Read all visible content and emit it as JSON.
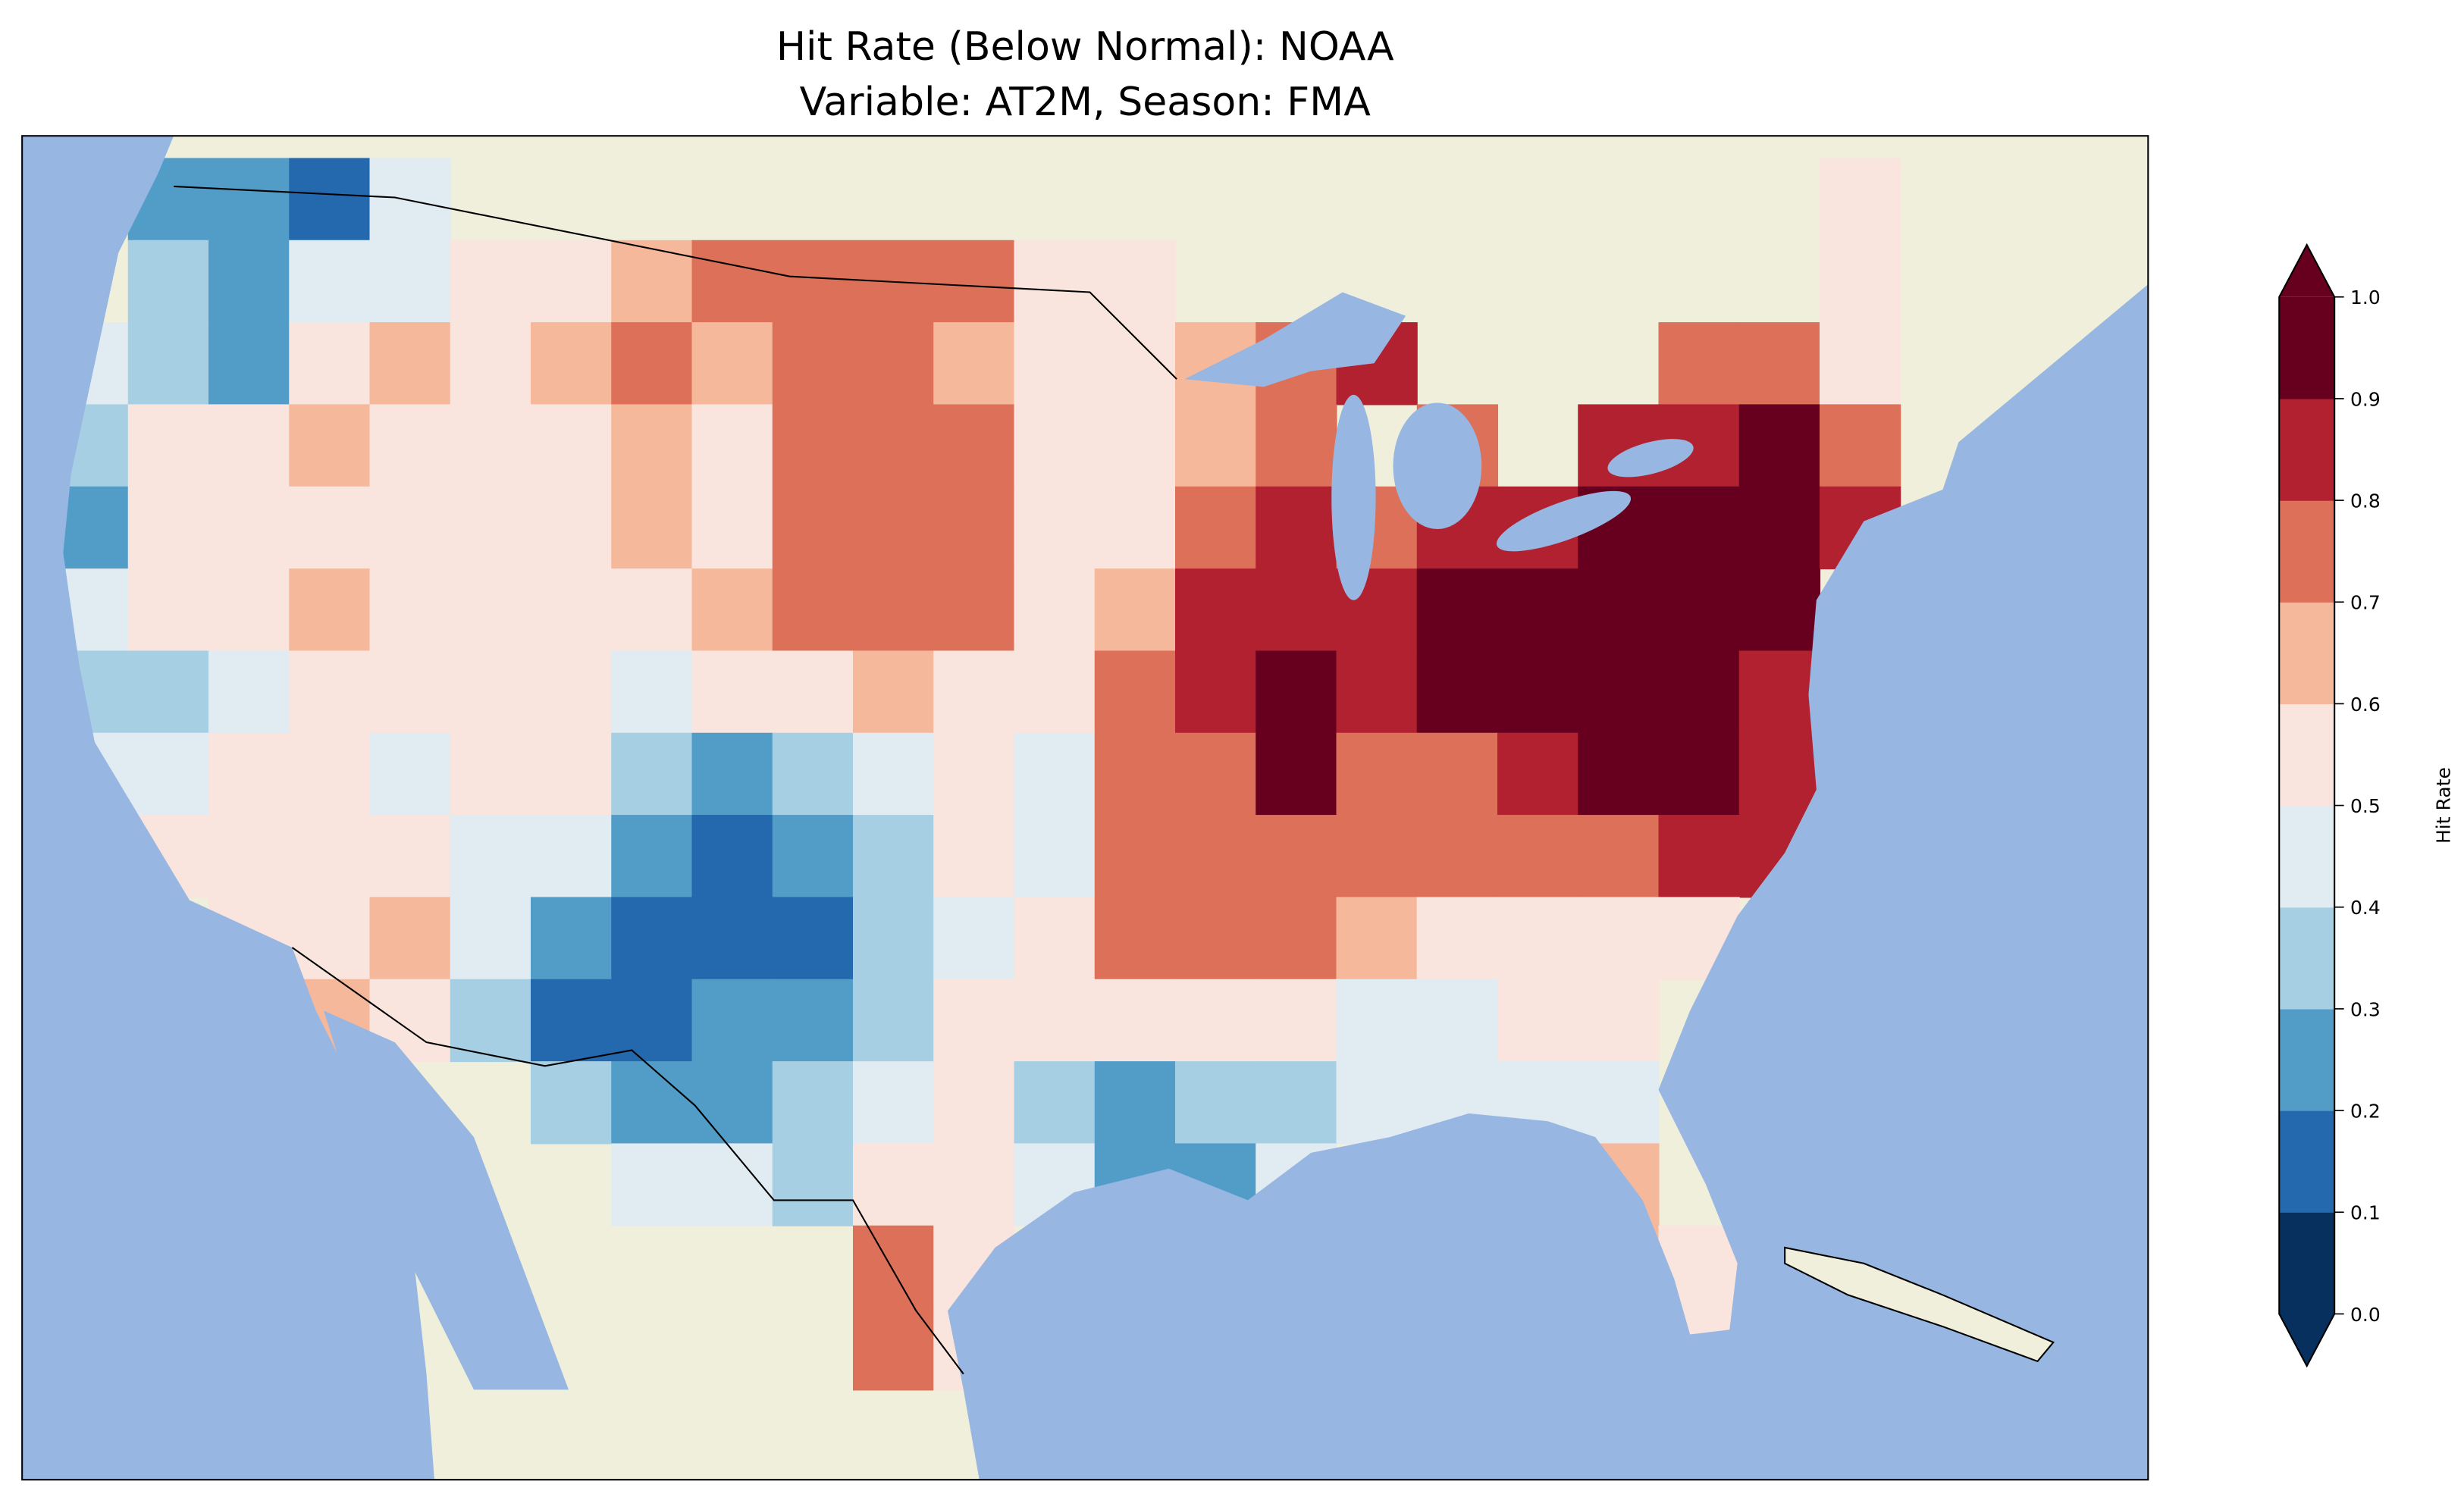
{
  "title": {
    "line1": "Hit Rate (Below Normal): NOAA",
    "line2": "Variable: AT2M, Season: FMA"
  },
  "colors": {
    "ocean": "#97b6e1",
    "land": "#efefdb",
    "bins": [
      "#08305e",
      "#2468ad",
      "#529dc8",
      "#a7cfe4",
      "#e1ebf2",
      "#f9e5dd",
      "#f6b89b",
      "#dd7059",
      "#b2212f",
      "#67001f"
    ]
  },
  "colorbar": {
    "label": "Hit Rate",
    "ticks": [
      "0.0",
      "0.1",
      "0.2",
      "0.3",
      "0.4",
      "0.5",
      "0.6",
      "0.7",
      "0.8",
      "0.9",
      "1.0"
    ],
    "extend": "both"
  },
  "chart_data": {
    "type": "heatmap",
    "title": "Hit Rate (Below Normal): NOAA / Variable: AT2M, Season: FMA",
    "colorbar_label": "Hit Rate",
    "levels": [
      0,
      0.1,
      0.2,
      0.3,
      0.4,
      0.5,
      0.6,
      0.7,
      0.8,
      0.9,
      1.0
    ],
    "vlim": [
      0,
      1
    ],
    "note": "approximate coarse grid of hit rate over CONUS, west-to-east columns, north-to-south rows; null = no data",
    "grid": [
      [
        null,
        0.25,
        0.25,
        0.15,
        0.45,
        null,
        null,
        null,
        null,
        null,
        null,
        null,
        null,
        null,
        null,
        null,
        null,
        null,
        null,
        null,
        null,
        null,
        0.55,
        null
      ],
      [
        null,
        0.35,
        0.25,
        0.45,
        0.45,
        0.55,
        0.55,
        0.65,
        0.75,
        0.75,
        0.75,
        0.75,
        0.55,
        0.55,
        null,
        null,
        null,
        null,
        null,
        null,
        null,
        null,
        0.55,
        null
      ],
      [
        0.45,
        0.35,
        0.25,
        0.55,
        0.65,
        0.55,
        0.65,
        0.75,
        0.65,
        0.75,
        0.75,
        0.65,
        0.55,
        0.55,
        0.65,
        0.75,
        0.85,
        null,
        null,
        null,
        0.75,
        0.75,
        0.55,
        null
      ],
      [
        0.35,
        0.55,
        0.55,
        0.65,
        0.55,
        0.55,
        0.55,
        0.65,
        0.55,
        0.75,
        0.75,
        0.75,
        0.55,
        0.55,
        0.65,
        0.75,
        null,
        0.75,
        null,
        0.85,
        0.85,
        0.95,
        0.75,
        null
      ],
      [
        0.25,
        0.55,
        0.55,
        0.55,
        0.55,
        0.55,
        0.55,
        0.65,
        0.55,
        0.75,
        0.75,
        0.75,
        0.55,
        0.55,
        0.75,
        0.85,
        0.75,
        0.85,
        0.85,
        0.95,
        0.95,
        0.95,
        0.85,
        null
      ],
      [
        0.45,
        0.55,
        0.55,
        0.65,
        0.55,
        0.55,
        0.55,
        0.55,
        0.65,
        0.75,
        0.75,
        0.75,
        0.55,
        0.65,
        0.85,
        0.85,
        0.85,
        0.95,
        0.95,
        0.95,
        0.95,
        0.95,
        null,
        null
      ],
      [
        0.35,
        0.35,
        0.45,
        0.55,
        0.55,
        0.55,
        0.55,
        0.45,
        0.55,
        0.55,
        0.65,
        0.55,
        0.55,
        0.75,
        0.85,
        0.95,
        0.85,
        0.95,
        0.95,
        0.95,
        0.95,
        0.85,
        null,
        null
      ],
      [
        0.45,
        0.45,
        0.55,
        0.55,
        0.45,
        0.55,
        0.55,
        0.35,
        0.25,
        0.35,
        0.45,
        0.55,
        0.45,
        0.75,
        0.75,
        0.95,
        0.75,
        0.75,
        0.85,
        0.95,
        0.95,
        0.85,
        null,
        null
      ],
      [
        null,
        0.55,
        0.55,
        0.55,
        0.55,
        0.45,
        0.45,
        0.25,
        0.15,
        0.25,
        0.35,
        0.55,
        0.45,
        0.75,
        0.75,
        0.75,
        0.75,
        0.75,
        0.75,
        0.75,
        0.85,
        0.85,
        null,
        null
      ],
      [
        null,
        null,
        0.55,
        0.55,
        0.65,
        0.45,
        0.25,
        0.15,
        0.15,
        0.15,
        0.35,
        0.45,
        0.55,
        0.75,
        0.75,
        0.75,
        0.65,
        0.55,
        0.55,
        0.55,
        0.55,
        null,
        null,
        null
      ],
      [
        null,
        null,
        null,
        0.65,
        0.55,
        0.35,
        0.15,
        0.15,
        0.25,
        0.25,
        0.35,
        0.55,
        0.55,
        0.55,
        0.55,
        0.55,
        0.45,
        0.45,
        0.55,
        0.55,
        null,
        null,
        null,
        null
      ],
      [
        null,
        null,
        null,
        null,
        null,
        null,
        0.35,
        0.25,
        0.25,
        0.35,
        0.45,
        0.55,
        0.35,
        0.25,
        0.35,
        0.35,
        0.45,
        0.45,
        0.45,
        0.45,
        null,
        null,
        null,
        null
      ],
      [
        null,
        null,
        null,
        null,
        null,
        null,
        null,
        0.45,
        0.45,
        0.35,
        0.55,
        0.55,
        0.45,
        0.25,
        0.25,
        0.45,
        null,
        null,
        null,
        0.65,
        null,
        null,
        null,
        null
      ],
      [
        null,
        null,
        null,
        null,
        null,
        null,
        null,
        null,
        null,
        null,
        0.75,
        0.55,
        null,
        null,
        null,
        null,
        null,
        null,
        null,
        0.65,
        0.55,
        null,
        null,
        null
      ],
      [
        null,
        null,
        null,
        null,
        null,
        null,
        null,
        null,
        null,
        null,
        0.75,
        0.55,
        null,
        null,
        null,
        null,
        null,
        null,
        null,
        null,
        0.55,
        null,
        null,
        null
      ]
    ]
  }
}
